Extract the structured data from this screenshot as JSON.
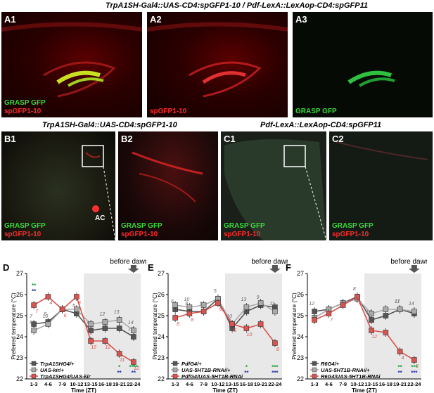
{
  "header": {
    "title": "TrpA1SH-Gal4::UAS-CD4:spGFP1-10 / Pdf-LexA::LexAop-CD4:spGFP11"
  },
  "row_b": {
    "title_b": "TrpA1SH-Gal4::UAS-CD4:spGFP1-10",
    "title_c": "Pdf-LexA::LexAop-CD4:spGFP11",
    "ac_label": "AC"
  },
  "panels": {
    "A1": {
      "label": "A1",
      "legend_green": "GRASP GFP",
      "legend_red": "spGFP1-10"
    },
    "A2": {
      "label": "A2",
      "legend_red": "spGFP1-10"
    },
    "A3": {
      "label": "A3",
      "legend_green": "GRASP GFP"
    },
    "B1": {
      "label": "B1",
      "legend_green": "GRASP GFP",
      "legend_red": "spGFP1-10"
    },
    "B2": {
      "label": "B2",
      "legend_green": "GRASP GFP",
      "legend_red": "spGFP1-10"
    },
    "C1": {
      "label": "C1",
      "legend_green": "GRASP GFP",
      "legend_red": "spGFP1-10"
    },
    "C2": {
      "label": "C2",
      "legend_green": "GRASP GFP",
      "legend_red": "spGFP1-10"
    }
  },
  "colors": {
    "green": "#3ad83a",
    "red": "#ff2a2a",
    "dark_series": "#555555",
    "light_series": "#aaaaaa",
    "red_series": "#d9534f",
    "shade": "#e8e8e8",
    "asterisk_green": "#1a9e3a",
    "asterisk_blue": "#1f2fa0"
  },
  "chart_data": [
    {
      "panel": "D",
      "type": "line",
      "ylabel": "Preferred temperature (°C)",
      "xlabel": "Time (ZT)",
      "annotation": "before dawn",
      "ylim": [
        22,
        27
      ],
      "yticks": [
        22,
        23,
        24,
        25,
        26,
        27
      ],
      "categories": [
        "1-3",
        "4-6",
        "7-9",
        "10-12",
        "13-15",
        "16-18",
        "19-21",
        "22-24"
      ],
      "series": [
        {
          "name": "TrpA1SHG4/+",
          "values": [
            24.6,
            24.7,
            25.3,
            25.1,
            24.3,
            24.4,
            24.4,
            24.0
          ],
          "n": [
            "7",
            "5",
            "",
            "5",
            "9",
            "",
            "",
            "12"
          ]
        },
        {
          "name": "UAS-kir/+",
          "values": [
            24.3,
            24.6,
            25.3,
            25.3,
            24.6,
            24.7,
            24.8,
            24.3
          ],
          "n": [
            "9",
            "10",
            "",
            "",
            "",
            "12",
            "13",
            "14"
          ]
        },
        {
          "name": "TrpA1SHG4/UAS-kir",
          "values": [
            25.5,
            25.9,
            25.3,
            25.9,
            23.8,
            23.8,
            23.2,
            22.8
          ],
          "n": [
            "7",
            "4",
            "6",
            "8",
            "12",
            "12",
            "11",
            "12"
          ]
        }
      ],
      "significance": [
        {
          "category": "1-3",
          "green": "**",
          "blue": "**"
        },
        {
          "category": "19-21",
          "green": "*",
          "blue": "**"
        },
        {
          "category": "22-24",
          "green": "****",
          "blue": "**"
        }
      ]
    },
    {
      "panel": "E",
      "type": "line",
      "ylabel": "Preferred temperature (°C)",
      "xlabel": "Time (ZT)",
      "annotation": "before dawn",
      "ylim": [
        22,
        27
      ],
      "yticks": [
        22,
        23,
        24,
        25,
        26,
        27
      ],
      "categories": [
        "1-3",
        "4-6",
        "7-9",
        "10-12",
        "13-15",
        "16-18",
        "19-21",
        "22-24"
      ],
      "series": [
        {
          "name": "PdfG4/+",
          "values": [
            25.3,
            25.2,
            25.2,
            25.8,
            24.4,
            25.2,
            25.5,
            25.4
          ],
          "n": [
            "6",
            "8",
            "5",
            "5",
            "9",
            "",
            "9",
            ""
          ]
        },
        {
          "name": "UAS-5HT1B-RNAi/+",
          "values": [
            25.5,
            25.4,
            25.5,
            25.8,
            24.6,
            25.4,
            25.6,
            25.2
          ],
          "n": [
            "",
            "10",
            "",
            "",
            "10",
            "13",
            "",
            "11"
          ]
        },
        {
          "name": "PdfG4/UAS-5HT1B-RNAi",
          "values": [
            24.9,
            25.1,
            25.2,
            25.6,
            24.6,
            24.4,
            24.6,
            23.7
          ],
          "n": [
            "8",
            "8",
            "",
            "6",
            "8",
            "10",
            "",
            "8"
          ]
        }
      ],
      "significance": [
        {
          "category": "16-18",
          "green": "*",
          "blue": "**"
        },
        {
          "category": "22-24",
          "green": "***",
          "blue": "***"
        }
      ]
    },
    {
      "panel": "F",
      "type": "line",
      "ylabel": "Preferred temperature (°C)",
      "xlabel": "Time (ZT)",
      "annotation": "before dawn",
      "ylim": [
        22,
        27
      ],
      "yticks": [
        22,
        23,
        24,
        25,
        26,
        27
      ],
      "categories": [
        "1-3",
        "4-6",
        "7-9",
        "10-12",
        "13-15",
        "16-18",
        "19-21",
        "22-24"
      ],
      "series": [
        {
          "name": "R6G4/+",
          "values": [
            25.2,
            25.3,
            25.6,
            25.9,
            24.8,
            25.0,
            25.3,
            25.1
          ],
          "n": [
            "12",
            "",
            "",
            "8",
            "10",
            "",
            "11",
            ""
          ]
        },
        {
          "name": "UAS-5HT1B-RNAi/+",
          "values": [
            24.9,
            25.3,
            25.6,
            25.8,
            25.1,
            25.3,
            25.3,
            25.2
          ],
          "n": [
            "",
            "",
            "",
            "",
            "",
            "",
            "17",
            "14"
          ]
        },
        {
          "name": "R6G4/UAS-5HT1B-RNAi",
          "values": [
            24.8,
            25.1,
            25.5,
            25.9,
            24.3,
            24.2,
            23.3,
            22.9
          ],
          "n": [
            "",
            "7",
            "",
            "8",
            "12",
            "",
            "4",
            "6"
          ]
        }
      ],
      "significance": [
        {
          "category": "19-21",
          "green": "**",
          "blue": "**"
        },
        {
          "category": "22-24",
          "green": "***",
          "blue": "***"
        }
      ]
    }
  ]
}
